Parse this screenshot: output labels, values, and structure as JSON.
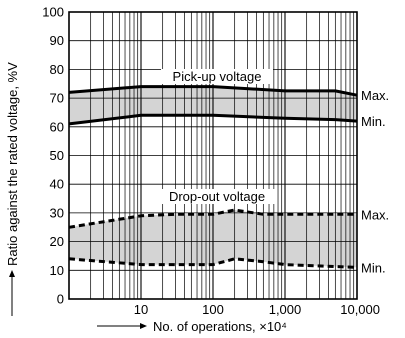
{
  "chart_data": {
    "type": "area",
    "x_scale": "log",
    "xlim": [
      1,
      10000
    ],
    "ylim": [
      0,
      100
    ],
    "grid": true,
    "xlabel": "No. of operations, ×10⁴",
    "ylabel": "Ratio against the rated voltage, %V",
    "x_ticks": [
      {
        "value": 10,
        "label": "10"
      },
      {
        "value": 100,
        "label": "100"
      },
      {
        "value": 1000,
        "label": "1,000"
      },
      {
        "value": 10000,
        "label": "10,000"
      }
    ],
    "y_ticks": [
      {
        "value": 0,
        "label": "0"
      },
      {
        "value": 10,
        "label": "10"
      },
      {
        "value": 20,
        "label": "20"
      },
      {
        "value": 30,
        "label": "30"
      },
      {
        "value": 40,
        "label": "40"
      },
      {
        "value": 50,
        "label": "50"
      },
      {
        "value": 60,
        "label": "60"
      },
      {
        "value": 70,
        "label": "70"
      },
      {
        "value": 80,
        "label": "80"
      },
      {
        "value": 90,
        "label": "90"
      },
      {
        "value": 100,
        "label": "100"
      }
    ],
    "bands": [
      {
        "name": "Pick-up voltage",
        "style": "solid",
        "fill_color": "#d4d4d4",
        "max": {
          "label": "Max.",
          "points": [
            [
              1,
              72
            ],
            [
              10,
              74
            ],
            [
              100,
              74
            ],
            [
              1000,
              72.5
            ],
            [
              5000,
              72.5
            ],
            [
              10000,
              71
            ]
          ]
        },
        "min": {
          "label": "Min.",
          "points": [
            [
              1,
              61
            ],
            [
              10,
              64
            ],
            [
              100,
              64
            ],
            [
              1000,
              63
            ],
            [
              5000,
              62.5
            ],
            [
              10000,
              62
            ]
          ]
        }
      },
      {
        "name": "Drop-out voltage",
        "style": "dashed",
        "fill_color": "#d4d4d4",
        "max": {
          "label": "Max.",
          "points": [
            [
              1,
              25
            ],
            [
              10,
              29
            ],
            [
              30,
              29.5
            ],
            [
              100,
              29.5
            ],
            [
              200,
              31
            ],
            [
              500,
              29.5
            ],
            [
              1000,
              29.5
            ],
            [
              10000,
              29.5
            ]
          ]
        },
        "min": {
          "label": "Min.",
          "points": [
            [
              1,
              14
            ],
            [
              10,
              12
            ],
            [
              100,
              12
            ],
            [
              200,
              14
            ],
            [
              500,
              13
            ],
            [
              1000,
              12
            ],
            [
              10000,
              11
            ]
          ]
        }
      }
    ]
  }
}
